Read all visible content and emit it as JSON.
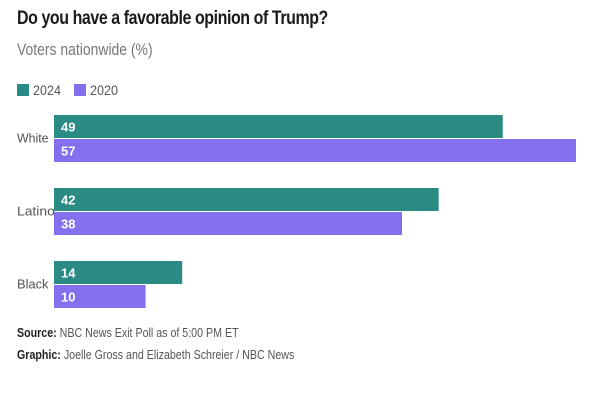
{
  "chart_data": {
    "type": "bar",
    "orientation": "horizontal",
    "title": "Do you have a favorable opinion of Trump?",
    "subtitle": "Voters nationwide (%)",
    "categories": [
      "White",
      "Latino",
      "Black"
    ],
    "series": [
      {
        "name": "2024",
        "color": "#2a8a84",
        "values": [
          49,
          42,
          14
        ]
      },
      {
        "name": "2020",
        "color": "#8470ee",
        "values": [
          57,
          38,
          10
        ]
      }
    ],
    "xlim": [
      0,
      57
    ],
    "grid": false,
    "legend_position": "top-left",
    "data_labels": "inside-left"
  },
  "footer": {
    "source_label": "Source:",
    "source_text": "NBC News Exit Poll as of 5:00 PM ET",
    "graphic_label": "Graphic:",
    "graphic_text": "Joelle Gross and Elizabeth Schreier / NBC News"
  }
}
